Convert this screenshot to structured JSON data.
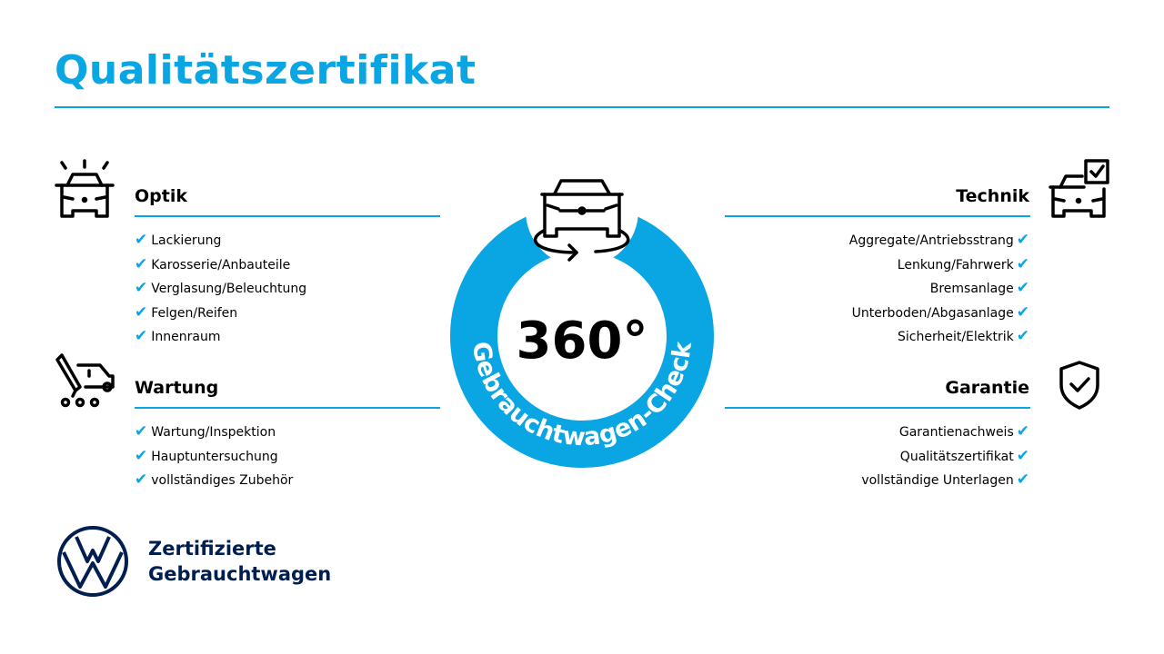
{
  "title": "Qualitätszertifikat",
  "accent_color": "#0aa5e3",
  "brand_color": "#001e50",
  "sections": {
    "optik": {
      "title": "Optik",
      "icon": "car-lights-icon",
      "items": [
        "Lackierung",
        "Karosserie/Anbauteile",
        "Verglasung/Beleuchtung",
        "Felgen/Reifen",
        "Innenraum"
      ]
    },
    "wartung": {
      "title": "Wartung",
      "icon": "service-tools-icon",
      "items": [
        "Wartung/Inspektion",
        "Hauptuntersuchung",
        "vollständiges Zubehör"
      ]
    },
    "technik": {
      "title": "Technik",
      "icon": "car-checkbox-icon",
      "items": [
        "Aggregate/Antriebsstrang",
        "Lenkung/Fahrwerk",
        "Bremsanlage",
        "Unterboden/Abgasanlage",
        "Sicherheit/Elektrik"
      ]
    },
    "garantie": {
      "title": "Garantie",
      "icon": "shield-check-icon",
      "items": [
        "Garantienachweis",
        "Qualitätszertifikat",
        "vollständige Unterlagen"
      ]
    }
  },
  "check_glyph": "✔",
  "badge": {
    "number": "360°",
    "ring_text": "Gebrauchtwagen-Check",
    "icon": "car-rotate-icon"
  },
  "brand": {
    "line1": "Zertifizierte",
    "line2": "Gebrauchtwagen",
    "logo": "vw-logo"
  }
}
